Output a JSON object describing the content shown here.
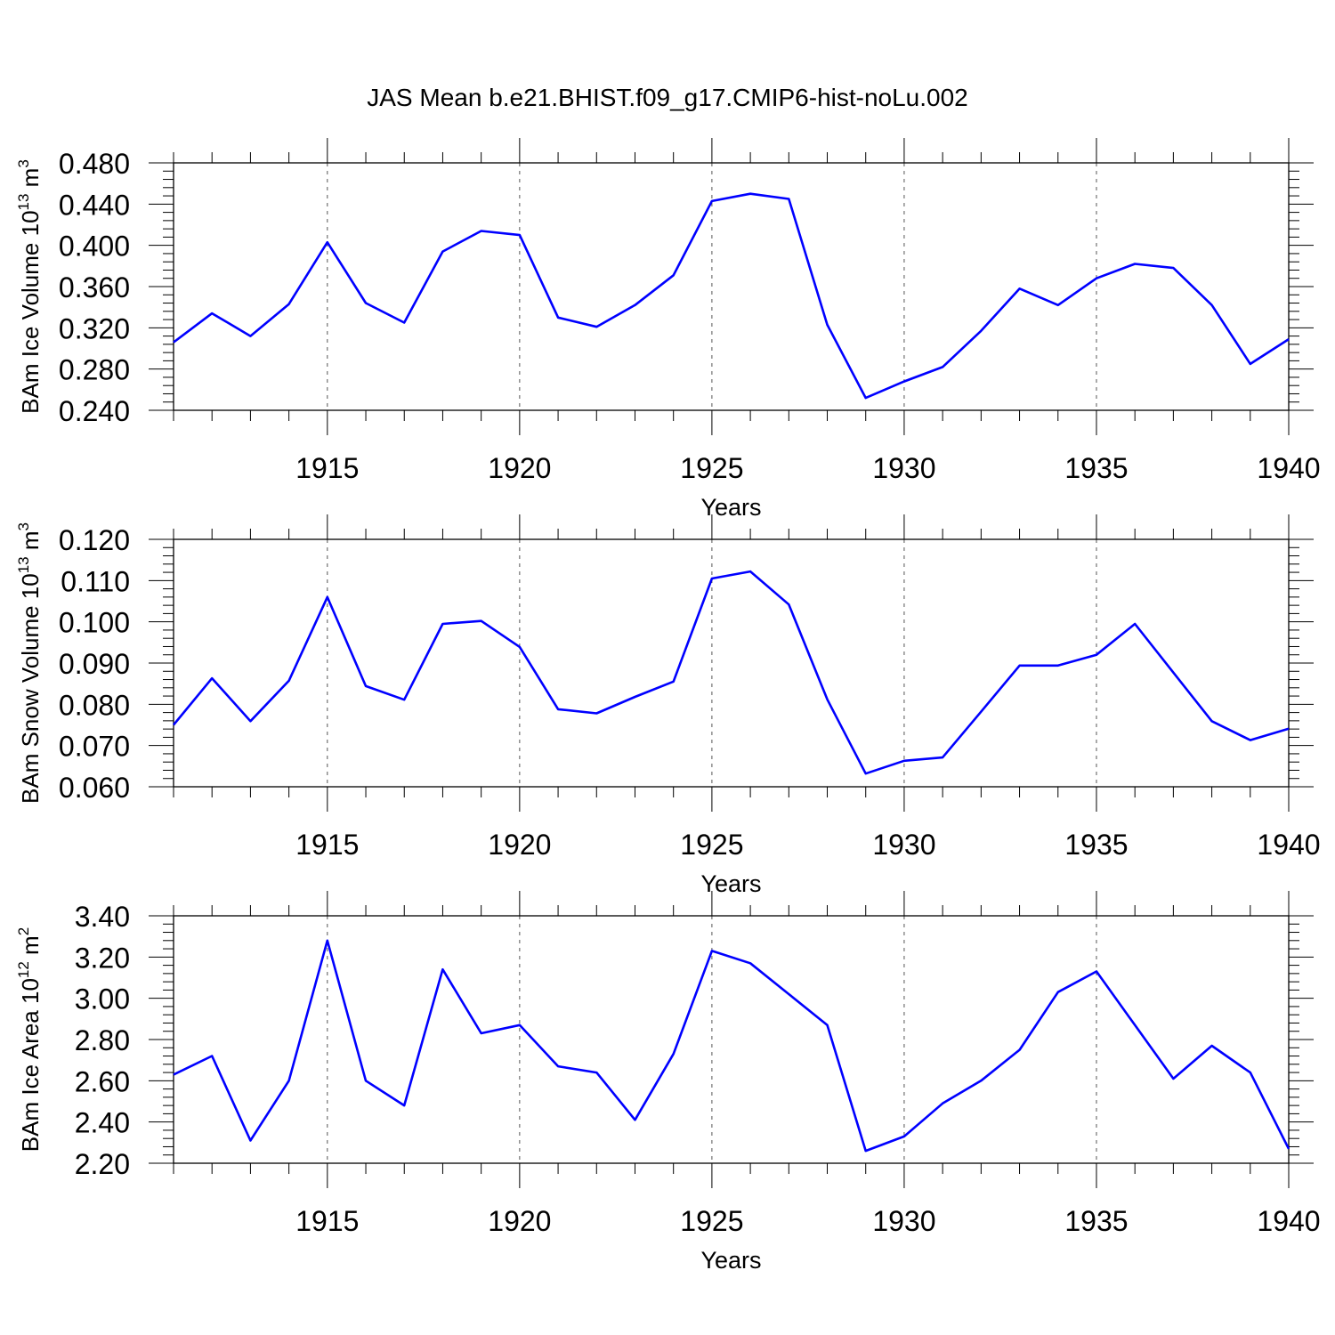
{
  "title": "JAS Mean b.e21.BHIST.f09_g17.CMIP6-hist-noLu.002",
  "line_color": "#0000ff",
  "chart_data": [
    {
      "type": "line",
      "xlabel": "Years",
      "ylabel_parts": [
        "BAm Ice Volume 10",
        "13",
        " m",
        "3"
      ],
      "xlim": [
        1911,
        1940
      ],
      "ylim": [
        0.24,
        0.48
      ],
      "xticks": [
        "1915",
        "1920",
        "1925",
        "1930",
        "1935",
        "1940"
      ],
      "yticks": [
        "0.480",
        "0.440",
        "0.400",
        "0.360",
        "0.320",
        "0.280",
        "0.240"
      ],
      "grid": "vertical dashed at major x ticks",
      "x": [
        1911,
        1912,
        1913,
        1914,
        1915,
        1916,
        1917,
        1918,
        1919,
        1920,
        1921,
        1922,
        1923,
        1924,
        1925,
        1926,
        1927,
        1928,
        1929,
        1930,
        1931,
        1932,
        1933,
        1934,
        1935,
        1936,
        1937,
        1938,
        1939,
        1940
      ],
      "values": [
        0.306,
        0.334,
        0.312,
        0.343,
        0.403,
        0.344,
        0.325,
        0.394,
        0.414,
        0.41,
        0.33,
        0.321,
        0.342,
        0.371,
        0.443,
        0.45,
        0.445,
        0.323,
        0.252,
        0.268,
        0.282,
        0.317,
        0.358,
        0.342,
        0.368,
        0.382,
        0.378,
        0.342,
        0.285,
        0.309
      ]
    },
    {
      "type": "line",
      "xlabel": "Years",
      "ylabel_parts": [
        "BAm Snow Volume 10",
        "13",
        " m",
        "3"
      ],
      "xlim": [
        1911,
        1940
      ],
      "ylim": [
        0.06,
        0.12
      ],
      "xticks": [
        "1915",
        "1920",
        "1925",
        "1930",
        "1935",
        "1940"
      ],
      "yticks": [
        "0.120",
        "0.110",
        "0.100",
        "0.090",
        "0.080",
        "0.070",
        "0.060"
      ],
      "grid": "vertical dashed at major x ticks",
      "x": [
        1911,
        1912,
        1913,
        1914,
        1915,
        1916,
        1917,
        1918,
        1919,
        1920,
        1921,
        1922,
        1923,
        1924,
        1925,
        1926,
        1927,
        1928,
        1929,
        1930,
        1931,
        1932,
        1933,
        1934,
        1935,
        1936,
        1937,
        1938,
        1939,
        1940
      ],
      "values": [
        0.075,
        0.0863,
        0.0759,
        0.0857,
        0.106,
        0.0844,
        0.0811,
        0.0995,
        0.1002,
        0.0939,
        0.0788,
        0.0778,
        0.0818,
        0.0855,
        0.1105,
        0.1122,
        0.1042,
        0.0812,
        0.0632,
        0.0663,
        0.0671,
        0.0782,
        0.0894,
        0.0894,
        0.092,
        0.0995,
        0.0877,
        0.0759,
        0.0713,
        0.0741
      ]
    },
    {
      "type": "line",
      "xlabel": "Years",
      "ylabel_parts": [
        "BAm Ice Area 10",
        "12",
        " m",
        "2"
      ],
      "xlim": [
        1911,
        1940
      ],
      "ylim": [
        2.2,
        3.4
      ],
      "xticks": [
        "1915",
        "1920",
        "1925",
        "1930",
        "1935",
        "1940"
      ],
      "yticks": [
        "3.40",
        "3.20",
        "3.00",
        "2.80",
        "2.60",
        "2.40",
        "2.20"
      ],
      "grid": "vertical dashed at major x ticks",
      "x": [
        1911,
        1912,
        1913,
        1914,
        1915,
        1916,
        1917,
        1918,
        1919,
        1920,
        1921,
        1922,
        1923,
        1924,
        1925,
        1926,
        1927,
        1928,
        1929,
        1930,
        1931,
        1932,
        1933,
        1934,
        1935,
        1936,
        1937,
        1938,
        1939,
        1940
      ],
      "values": [
        2.63,
        2.72,
        2.31,
        2.6,
        3.28,
        2.6,
        2.48,
        3.14,
        2.83,
        2.87,
        2.67,
        2.64,
        2.41,
        2.73,
        3.23,
        3.17,
        3.02,
        2.87,
        2.26,
        2.33,
        2.49,
        2.6,
        2.75,
        3.03,
        3.13,
        2.87,
        2.61,
        2.77,
        2.64,
        2.27
      ]
    }
  ]
}
